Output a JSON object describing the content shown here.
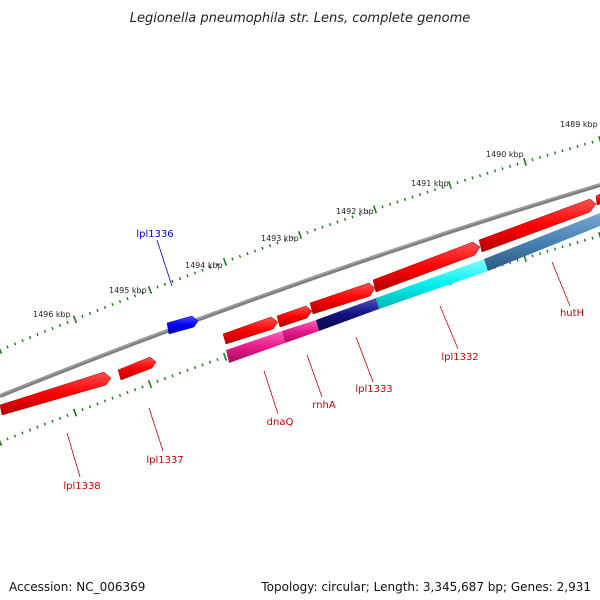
{
  "title": "Legionella pneumophila str. Lens, complete genome",
  "footer": {
    "accession": "Accession: NC_006369",
    "summary": "Topology: circular; Length: 3,345,687 bp; Genes: 2,931"
  },
  "colors": {
    "backbone": "#7f7f7f",
    "ticks": "#1a7a1a",
    "gene_red": "#ff0000",
    "gene_blue": "#0000ff",
    "label_red": "#cc0000",
    "label_blue": "#0000cc",
    "cds_magenta": "#e8188c",
    "cds_cyan": "#00f0f0",
    "cds_steel": "#4682b4",
    "cds_navy": "#101080"
  },
  "tick_labels": [
    "1489 kbp",
    "1490 kbp",
    "1491 kbp",
    "1492 kbp",
    "1493 kbp",
    "1494 kbp",
    "1495 kbp",
    "1496 kbp"
  ],
  "gene_labels": [
    "lpl1336",
    "hutH",
    "lpl1332",
    "lpl1333",
    "rnhA",
    "dnaQ",
    "lpl1337",
    "lpl1338"
  ]
}
